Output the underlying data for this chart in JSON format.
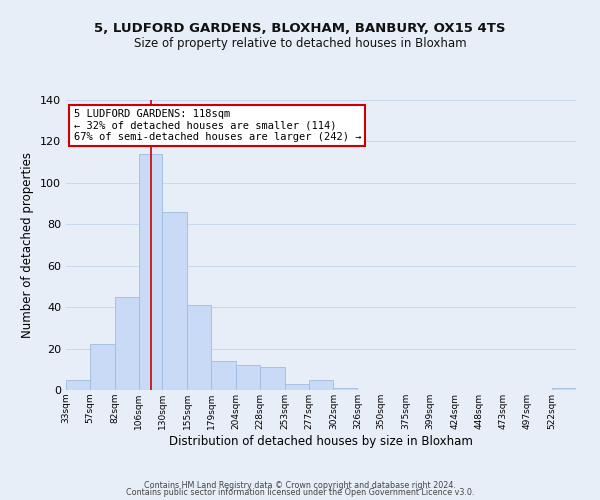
{
  "title1": "5, LUDFORD GARDENS, BLOXHAM, BANBURY, OX15 4TS",
  "title2": "Size of property relative to detached houses in Bloxham",
  "xlabel": "Distribution of detached houses by size in Bloxham",
  "ylabel": "Number of detached properties",
  "bar_values": [
    5,
    22,
    45,
    114,
    86,
    41,
    14,
    12,
    11,
    3,
    5,
    1,
    0,
    0,
    0,
    0,
    0,
    0,
    0,
    0,
    1
  ],
  "bin_edges": [
    33,
    57,
    82,
    106,
    130,
    155,
    179,
    204,
    228,
    253,
    277,
    302,
    326,
    350,
    375,
    399,
    424,
    448,
    473,
    497,
    522,
    546
  ],
  "xtick_labels": [
    "33sqm",
    "57sqm",
    "82sqm",
    "106sqm",
    "130sqm",
    "155sqm",
    "179sqm",
    "204sqm",
    "228sqm",
    "253sqm",
    "277sqm",
    "302sqm",
    "326sqm",
    "350sqm",
    "375sqm",
    "399sqm",
    "424sqm",
    "448sqm",
    "473sqm",
    "497sqm",
    "522sqm"
  ],
  "bar_color": "#c8daf5",
  "bar_edge_color": "#a0bce0",
  "red_line_x": 118,
  "ylim": [
    0,
    140
  ],
  "yticks": [
    0,
    20,
    40,
    60,
    80,
    100,
    120,
    140
  ],
  "annotation_title": "5 LUDFORD GARDENS: 118sqm",
  "annotation_line1": "← 32% of detached houses are smaller (114)",
  "annotation_line2": "67% of semi-detached houses are larger (242) →",
  "annotation_box_color": "#ffffff",
  "annotation_box_edge": "#cc0000",
  "grid_color": "#c8d8ee",
  "background_color": "#e8eef8",
  "footer1": "Contains HM Land Registry data © Crown copyright and database right 2024.",
  "footer2": "Contains public sector information licensed under the Open Government Licence v3.0."
}
